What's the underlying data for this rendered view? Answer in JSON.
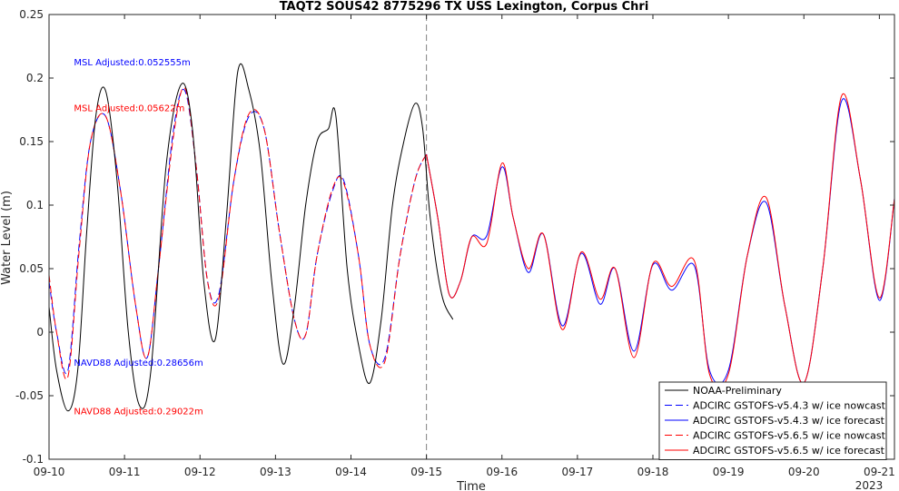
{
  "chart_data": {
    "type": "line",
    "title": "TAQT2 SOUS42 8775296 TX USS Lexington, Corpus Chri",
    "xlabel": "Time",
    "ylabel": "Water Level (m)",
    "x_year_label": "2023",
    "xlim": [
      0,
      11.2
    ],
    "ylim": [
      -0.1,
      0.25
    ],
    "x_ticks": [
      {
        "v": 0,
        "label": "09-10"
      },
      {
        "v": 1,
        "label": "09-11"
      },
      {
        "v": 2,
        "label": "09-12"
      },
      {
        "v": 3,
        "label": "09-13"
      },
      {
        "v": 4,
        "label": "09-14"
      },
      {
        "v": 5,
        "label": "09-15"
      },
      {
        "v": 6,
        "label": "09-16"
      },
      {
        "v": 7,
        "label": "09-17"
      },
      {
        "v": 8,
        "label": "09-18"
      },
      {
        "v": 9,
        "label": "09-19"
      },
      {
        "v": 10,
        "label": "09-20"
      },
      {
        "v": 11,
        "label": "09-21"
      }
    ],
    "y_ticks": [
      {
        "v": -0.1,
        "label": "-0.1"
      },
      {
        "v": -0.05,
        "label": "-0.05"
      },
      {
        "v": 0,
        "label": "0"
      },
      {
        "v": 0.05,
        "label": "0.05"
      },
      {
        "v": 0.1,
        "label": "0.1"
      },
      {
        "v": 0.15,
        "label": "0.15"
      },
      {
        "v": 0.2,
        "label": "0.2"
      },
      {
        "v": 0.25,
        "label": "0.25"
      }
    ],
    "nowcast_forecast_split_x": 5,
    "annotations": [
      {
        "text": "MSL Adjusted:0.052555m",
        "color": "#0000ff",
        "x": 0.33,
        "y": 0.21
      },
      {
        "text": "MSL Adjusted:0.05622m",
        "color": "#ff0000",
        "x": 0.33,
        "y": 0.174
      },
      {
        "text": "NAVD88 Adjusted:0.28656m",
        "color": "#0000ff",
        "x": 0.33,
        "y": -0.0265
      },
      {
        "text": "NAVD88 Adjusted:0.29022m",
        "color": "#ff0000",
        "x": 0.33,
        "y": -0.0645
      }
    ],
    "legend_position": "bottom-right",
    "series": [
      {
        "name": "NOAA-Preliminary",
        "color": "#000000",
        "dash": "solid",
        "x": [
          0,
          0.1,
          0.25,
          0.38,
          0.5,
          0.62,
          0.75,
          0.9,
          1.05,
          1.2,
          1.35,
          1.55,
          1.75,
          1.9,
          2.05,
          2.2,
          2.35,
          2.5,
          2.65,
          2.8,
          2.95,
          3.1,
          3.25,
          3.4,
          3.55,
          3.7,
          3.8,
          3.95,
          4.1,
          4.25,
          4.4,
          4.55,
          4.7,
          4.85,
          4.95,
          5.05,
          5.2,
          5.35
        ],
        "y": [
          0.02,
          -0.03,
          -0.062,
          -0.03,
          0.08,
          0.17,
          0.19,
          0.12,
          0.0,
          -0.058,
          -0.03,
          0.13,
          0.195,
          0.16,
          0.04,
          -0.006,
          0.09,
          0.205,
          0.19,
          0.14,
          0.04,
          -0.025,
          0.02,
          0.1,
          0.15,
          0.16,
          0.17,
          0.05,
          -0.01,
          -0.04,
          0.01,
          0.1,
          0.15,
          0.18,
          0.16,
          0.09,
          0.03,
          0.01
        ]
      },
      {
        "name": "ADCIRC GSTOFS-v5.4.3 w/ ice nowcast",
        "color": "#0000ff",
        "dash": "dashed",
        "x": [
          0,
          0.1,
          0.25,
          0.4,
          0.55,
          0.75,
          0.95,
          1.15,
          1.3,
          1.45,
          1.65,
          1.8,
          1.95,
          2.1,
          2.25,
          2.45,
          2.65,
          2.85,
          3.05,
          3.25,
          3.4,
          3.55,
          3.75,
          3.9,
          4.1,
          4.25,
          4.45,
          4.65,
          4.85,
          5.0
        ],
        "y": [
          0.04,
          0.0,
          -0.03,
          0.07,
          0.15,
          0.17,
          0.11,
          0.02,
          -0.02,
          0.05,
          0.16,
          0.19,
          0.13,
          0.04,
          0.03,
          0.12,
          0.17,
          0.16,
          0.08,
          0.01,
          -0.002,
          0.06,
          0.11,
          0.12,
          0.06,
          -0.01,
          -0.02,
          0.06,
          0.12,
          0.14
        ]
      },
      {
        "name": "ADCIRC GSTOFS-v5.4.3 w/ ice forecast",
        "color": "#0000ff",
        "dash": "solid",
        "x": [
          5.0,
          5.15,
          5.3,
          5.45,
          5.6,
          5.8,
          6.0,
          6.15,
          6.35,
          6.55,
          6.8,
          7.05,
          7.3,
          7.5,
          7.75,
          8.0,
          8.25,
          8.55,
          8.75,
          9.0,
          9.25,
          9.5,
          9.75,
          10.0,
          10.25,
          10.5,
          10.75,
          11.0,
          11.2
        ],
        "y": [
          0.14,
          0.09,
          0.03,
          0.04,
          0.075,
          0.076,
          0.13,
          0.09,
          0.047,
          0.077,
          0.005,
          0.062,
          0.022,
          0.05,
          -0.015,
          0.053,
          0.033,
          0.052,
          -0.03,
          -0.03,
          0.06,
          0.102,
          0.02,
          -0.04,
          0.05,
          0.182,
          0.12,
          0.025,
          0.105
        ]
      },
      {
        "name": "ADCIRC GSTOFS-v5.6.5 w/ ice nowcast",
        "color": "#ff0000",
        "dash": "dashed",
        "x": [
          0,
          0.1,
          0.25,
          0.4,
          0.55,
          0.75,
          0.95,
          1.15,
          1.3,
          1.45,
          1.65,
          1.8,
          1.95,
          2.1,
          2.25,
          2.45,
          2.65,
          2.85,
          3.05,
          3.25,
          3.4,
          3.55,
          3.75,
          3.9,
          4.1,
          4.25,
          4.45,
          4.65,
          4.85,
          5.0
        ],
        "y": [
          0.045,
          0.0,
          -0.035,
          0.065,
          0.15,
          0.17,
          0.11,
          0.02,
          -0.02,
          0.05,
          0.155,
          0.192,
          0.13,
          0.04,
          0.027,
          0.12,
          0.172,
          0.16,
          0.08,
          0.01,
          -0.002,
          0.06,
          0.112,
          0.118,
          0.06,
          -0.01,
          -0.023,
          0.06,
          0.12,
          0.14
        ]
      },
      {
        "name": "ADCIRC GSTOFS-v5.6.5 w/ ice forecast",
        "color": "#ff0000",
        "dash": "solid",
        "x": [
          5.0,
          5.15,
          5.3,
          5.45,
          5.6,
          5.8,
          6.0,
          6.15,
          6.35,
          6.55,
          6.8,
          7.05,
          7.3,
          7.5,
          7.75,
          8.0,
          8.25,
          8.55,
          8.75,
          9.0,
          9.25,
          9.5,
          9.75,
          10.0,
          10.25,
          10.5,
          10.75,
          11.0,
          11.2
        ],
        "y": [
          0.14,
          0.09,
          0.03,
          0.04,
          0.075,
          0.07,
          0.133,
          0.09,
          0.05,
          0.077,
          0.002,
          0.063,
          0.026,
          0.05,
          -0.02,
          0.054,
          0.036,
          0.056,
          -0.033,
          -0.033,
          0.06,
          0.106,
          0.02,
          -0.04,
          0.05,
          0.186,
          0.12,
          0.027,
          0.105
        ]
      }
    ]
  }
}
